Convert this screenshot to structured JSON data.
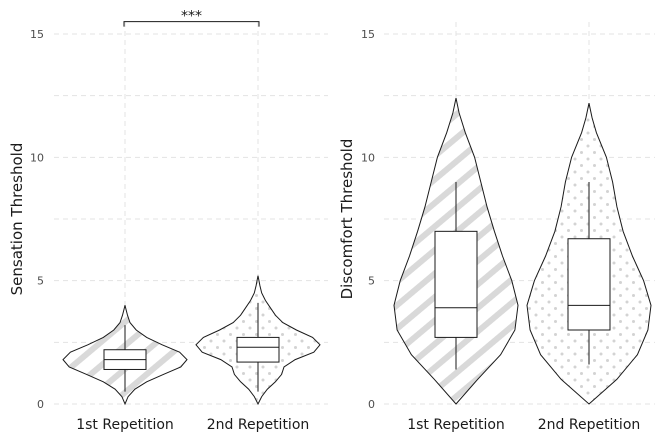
{
  "chart_data": [
    {
      "type": "violin",
      "ylabel": "Sensation Threshold",
      "ylim": [
        0,
        15
      ],
      "yticks": [
        "0",
        "5",
        "10",
        "15"
      ],
      "categories": [
        "1st Repetition",
        "2nd Repetition"
      ],
      "fill_patterns": [
        "diagonal-stripes",
        "dots"
      ],
      "grid": true,
      "violins": [
        {
          "category": "1st Repetition",
          "range": [
            0.0,
            4.0
          ],
          "density": [
            [
              0.0,
              0.0
            ],
            [
              0.3,
              0.05
            ],
            [
              0.6,
              0.16
            ],
            [
              0.9,
              0.35
            ],
            [
              1.2,
              0.62
            ],
            [
              1.5,
              0.9
            ],
            [
              1.8,
              1.0
            ],
            [
              2.1,
              0.88
            ],
            [
              2.4,
              0.6
            ],
            [
              2.7,
              0.35
            ],
            [
              3.0,
              0.18
            ],
            [
              3.3,
              0.08
            ],
            [
              3.6,
              0.04
            ],
            [
              3.85,
              0.015
            ],
            [
              4.0,
              0.0
            ]
          ],
          "box": {
            "whisker_low": 0.5,
            "q1": 1.4,
            "median": 1.8,
            "q3": 2.2,
            "whisker_high": 3.2
          }
        },
        {
          "category": "2nd Repetition",
          "range": [
            0.0,
            5.2
          ],
          "density": [
            [
              0.0,
              0.0
            ],
            [
              0.3,
              0.06
            ],
            [
              0.6,
              0.15
            ],
            [
              0.9,
              0.28
            ],
            [
              1.2,
              0.38
            ],
            [
              1.5,
              0.42
            ],
            [
              1.8,
              0.6
            ],
            [
              2.1,
              0.9
            ],
            [
              2.4,
              1.0
            ],
            [
              2.7,
              0.88
            ],
            [
              3.0,
              0.62
            ],
            [
              3.3,
              0.4
            ],
            [
              3.6,
              0.28
            ],
            [
              3.9,
              0.2
            ],
            [
              4.2,
              0.12
            ],
            [
              4.5,
              0.06
            ],
            [
              4.8,
              0.03
            ],
            [
              5.2,
              0.0
            ]
          ],
          "box": {
            "whisker_low": 0.5,
            "q1": 1.7,
            "median": 2.3,
            "q3": 2.7,
            "whisker_high": 4.1
          }
        }
      ],
      "significance": {
        "label": "***",
        "between": [
          "1st Repetition",
          "2nd Repetition"
        ],
        "y": 15.5
      }
    },
    {
      "type": "violin",
      "ylabel": "Discomfort Threshold",
      "ylim": [
        0,
        15
      ],
      "yticks": [
        "0",
        "5",
        "10",
        "15"
      ],
      "categories": [
        "1st Repetition",
        "2nd Repetition"
      ],
      "fill_patterns": [
        "diagonal-stripes",
        "dots"
      ],
      "grid": true,
      "violins": [
        {
          "category": "1st Repetition",
          "range": [
            0.0,
            12.4
          ],
          "density": [
            [
              0.0,
              0.0
            ],
            [
              1.0,
              0.35
            ],
            [
              2.0,
              0.72
            ],
            [
              3.0,
              0.95
            ],
            [
              4.0,
              1.0
            ],
            [
              5.0,
              0.9
            ],
            [
              6.0,
              0.75
            ],
            [
              7.0,
              0.62
            ],
            [
              8.0,
              0.5
            ],
            [
              9.0,
              0.4
            ],
            [
              10.0,
              0.3
            ],
            [
              11.0,
              0.15
            ],
            [
              11.8,
              0.05
            ],
            [
              12.4,
              0.0
            ]
          ],
          "box": {
            "whisker_low": 1.4,
            "q1": 2.7,
            "median": 3.9,
            "q3": 7.0,
            "whisker_high": 9.0
          }
        },
        {
          "category": "2nd Repetition",
          "range": [
            0.0,
            12.2
          ],
          "density": [
            [
              0.0,
              0.0
            ],
            [
              1.0,
              0.45
            ],
            [
              2.0,
              0.78
            ],
            [
              3.0,
              0.95
            ],
            [
              4.0,
              1.0
            ],
            [
              5.0,
              0.88
            ],
            [
              6.0,
              0.7
            ],
            [
              7.0,
              0.55
            ],
            [
              8.0,
              0.45
            ],
            [
              9.0,
              0.38
            ],
            [
              10.0,
              0.28
            ],
            [
              11.0,
              0.12
            ],
            [
              11.6,
              0.05
            ],
            [
              12.2,
              0.0
            ]
          ],
          "box": {
            "whisker_low": 1.6,
            "q1": 3.0,
            "median": 4.0,
            "q3": 6.7,
            "whisker_high": 9.0
          }
        }
      ]
    }
  ]
}
